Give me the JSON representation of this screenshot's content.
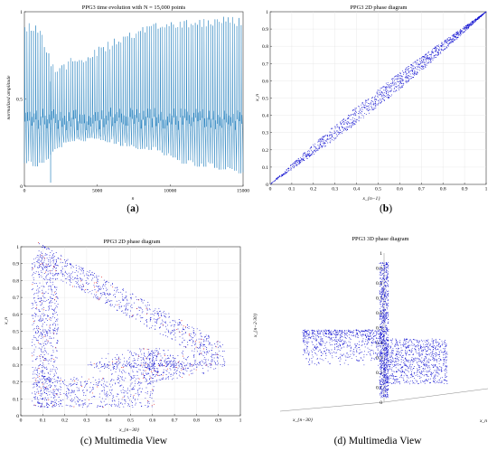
{
  "panels": {
    "a": {
      "title": "PPG3 time evolution with N = 15,000 points",
      "xlabel": "n",
      "ylabel": "normalized amplitude",
      "caption_letter": "a"
    },
    "b": {
      "title": "PPG3 2D phase diagram",
      "xlabel": "x_{n−1}",
      "ylabel": "x_n",
      "caption_letter": "b"
    },
    "c": {
      "title": "PPG3 2D phase diagram",
      "xlabel": "x_{n−30}",
      "ylabel": "x_n",
      "caption_prefix": "(c) ",
      "caption_text": "Multimedia View"
    },
    "d": {
      "title": "PPG3 3D phase diagram",
      "xlabel": "x_{n−30}",
      "ylabel": "x_n",
      "zlabel": "x_{n−2·30}",
      "caption_prefix": "(d) ",
      "caption_text": "Multimedia View"
    }
  },
  "chart_data": [
    {
      "type": "line",
      "title": "PPG3 time evolution with N = 15,000 points",
      "xlabel": "n",
      "ylabel": "normalized amplitude",
      "xlim": [
        0,
        15000
      ],
      "ylim": [
        0,
        1
      ],
      "x_ticks": [
        "0",
        "5000",
        "10000",
        "15000"
      ],
      "y_ticks": [
        "0",
        "0.5",
        "1"
      ],
      "series_color": "#2e86c1",
      "envelope_max": {
        "x": [
          0,
          1000,
          2000,
          3000,
          5000,
          7000,
          9000,
          11000,
          13000,
          15000
        ],
        "y": [
          0.95,
          0.93,
          0.7,
          0.73,
          0.8,
          0.88,
          0.95,
          0.97,
          0.97,
          0.98
        ]
      },
      "envelope_min": {
        "x": [
          0,
          1000,
          2000,
          3000,
          5000,
          7000,
          9000,
          11000,
          13000,
          15000
        ],
        "y": [
          0.12,
          0.1,
          0.2,
          0.25,
          0.25,
          0.22,
          0.2,
          0.12,
          0.1,
          0.06
        ]
      }
    },
    {
      "type": "scatter",
      "title": "PPG3 2D phase diagram",
      "xlabel": "x_{n−1}",
      "ylabel": "x_n",
      "xlim": [
        0,
        1
      ],
      "ylim": [
        0,
        1
      ],
      "x_ticks": [
        "0",
        "0.1",
        "0.2",
        "0.3",
        "0.4",
        "0.5",
        "0.6",
        "0.7",
        "0.8",
        "0.9",
        "1"
      ],
      "y_ticks": [
        "0",
        "0.1",
        "0.2",
        "0.3",
        "0.4",
        "0.5",
        "0.6",
        "0.7",
        "0.8",
        "0.9",
        "1"
      ],
      "point_color": "#1010d0",
      "shape": "narrow band along diagonal y = x"
    },
    {
      "type": "scatter",
      "title": "PPG3 2D phase diagram",
      "xlabel": "x_{n−30}",
      "ylabel": "x_n",
      "xlim": [
        0,
        1
      ],
      "ylim": [
        0,
        1
      ],
      "x_ticks": [
        "0",
        "0.1",
        "0.2",
        "0.3",
        "0.4",
        "0.5",
        "0.6",
        "0.7",
        "0.8",
        "0.9",
        "1"
      ],
      "y_ticks": [
        "0",
        "0.1",
        "0.2",
        "0.3",
        "0.4",
        "0.5",
        "0.6",
        "0.7",
        "0.8",
        "0.9",
        "1"
      ],
      "point_color": "#1010d0",
      "highlight_color": "#e01010",
      "shape": "triangular loop attractor"
    },
    {
      "type": "scatter",
      "title": "PPG3 3D phase diagram",
      "xlabel": "x_{n−30}",
      "ylabel": "x_n",
      "zlabel": "x_{n−2·30}",
      "zlim": [
        0,
        1
      ],
      "z_ticks": [
        "0",
        "0.1",
        "0.2",
        "0.3",
        "0.4",
        "0.5",
        "0.6",
        "0.7",
        "0.8",
        "0.9",
        "1"
      ],
      "x_ticks": [
        "0",
        "0.2",
        "0.4"
      ],
      "y_ticks": [
        "0",
        "0.2",
        "0.4",
        "0.6"
      ],
      "point_color": "#1010d0",
      "shape": "3D loop attractor"
    }
  ]
}
